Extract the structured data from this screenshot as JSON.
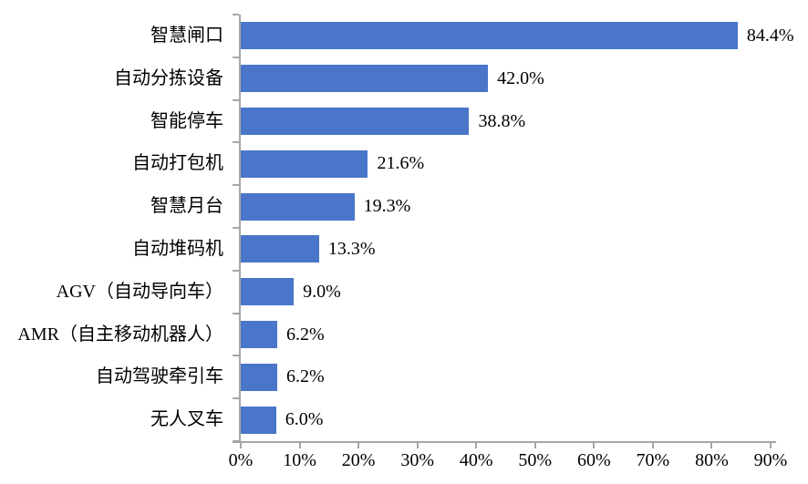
{
  "chart_data": {
    "type": "bar",
    "orientation": "horizontal",
    "title": "",
    "xlabel": "",
    "ylabel": "",
    "categories": [
      "智慧闸口",
      "自动分拣设备",
      "智能停车",
      "自动打包机",
      "智慧月台",
      "自动堆码机",
      "AGV（自动导向车）",
      "AMR（自主移动机器人）",
      "自动驾驶牵引车",
      "无人叉车"
    ],
    "values": [
      84.4,
      42.0,
      38.8,
      21.6,
      19.3,
      13.3,
      9.0,
      6.2,
      6.2,
      6.0
    ],
    "value_labels": [
      "84.4%",
      "42.0%",
      "38.8%",
      "21.6%",
      "19.3%",
      "13.3%",
      "9.0%",
      "6.2%",
      "6.2%",
      "6.0%"
    ],
    "x_ticks": [
      "0%",
      "10%",
      "20%",
      "30%",
      "40%",
      "50%",
      "60%",
      "70%",
      "80%",
      "90%"
    ],
    "xlim": [
      0,
      90
    ],
    "grid": false,
    "legend": "none",
    "bar_color": "#4A76C9",
    "axis_color": "#A6A6A6",
    "text_color": "#000000",
    "background_color": "#FFFFFF"
  }
}
